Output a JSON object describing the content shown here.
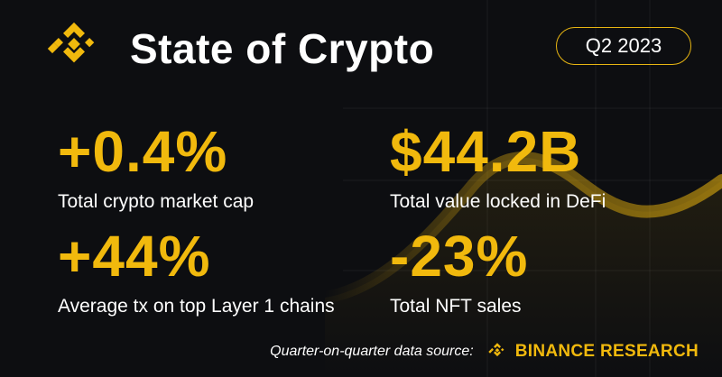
{
  "header": {
    "title": "State of Crypto",
    "period": "Q2 2023",
    "logo_icon": "binance-diamond-icon"
  },
  "stats": [
    {
      "value": "+0.4%",
      "label": "Total crypto market cap"
    },
    {
      "value": "$44.2B",
      "label": "Total value locked in DeFi"
    },
    {
      "value": "+44%",
      "label": "Average tx on top Layer 1 chains"
    },
    {
      "value": "-23%",
      "label": "Total NFT sales"
    }
  ],
  "footer": {
    "source_text": "Quarter-on-quarter data source:",
    "brand": "BINANCE RESEARCH",
    "brand_icon": "binance-diamond-icon"
  },
  "colors": {
    "accent": "#f1b90d",
    "background": "#0d0e11",
    "text": "#ffffff"
  }
}
